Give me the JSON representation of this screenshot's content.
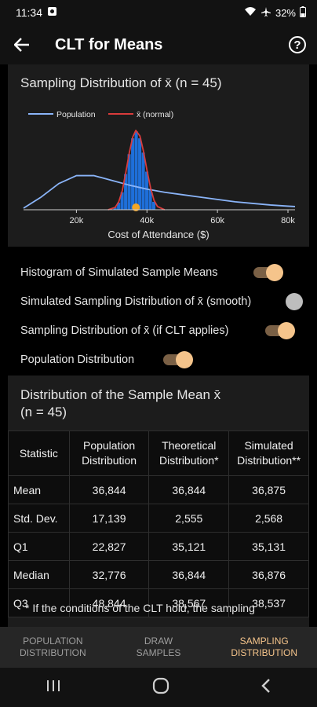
{
  "status_bar": {
    "time": "11:34",
    "battery": "32%"
  },
  "app_bar": {
    "title": "CLT for Means"
  },
  "chart_card": {
    "title": "Sampling Distribution of x̄ (n = 45)"
  },
  "chart_data": {
    "type": "area",
    "xlabel": "Cost of Attendance ($)",
    "ylabel": "",
    "x_ticks": [
      "20k",
      "40k",
      "60k",
      "80k"
    ],
    "x_tick_values": [
      20000,
      40000,
      60000,
      80000
    ],
    "xlim": [
      5000,
      82000
    ],
    "legend": "top-left",
    "series": [
      {
        "name": "Population",
        "color": "#8ab4f8",
        "x": [
          5000,
          10000,
          15000,
          20000,
          25000,
          30000,
          35000,
          40000,
          45000,
          50000,
          55000,
          60000,
          65000,
          70000,
          75000,
          80000,
          82000
        ],
        "y": [
          0.02,
          0.16,
          0.33,
          0.43,
          0.43,
          0.37,
          0.31,
          0.26,
          0.22,
          0.19,
          0.16,
          0.13,
          0.1,
          0.08,
          0.06,
          0.045,
          0.04
        ]
      },
      {
        "name": "x̄ (normal)",
        "color": "#d93b3b",
        "x": [
          29000,
          31000,
          32000,
          33000,
          34000,
          35000,
          36000,
          36844,
          38000,
          39000,
          40000,
          41000,
          42000,
          43000,
          45000
        ],
        "y": [
          0.0,
          0.03,
          0.1,
          0.24,
          0.47,
          0.72,
          0.92,
          1.0,
          0.93,
          0.74,
          0.5,
          0.28,
          0.12,
          0.04,
          0.0
        ]
      }
    ],
    "histogram": {
      "color": "#1e6fd9",
      "x": [
        31000,
        32000,
        33000,
        34000,
        35000,
        36000,
        37000,
        38000,
        39000,
        40000,
        41000,
        42000
      ],
      "y": [
        0.03,
        0.09,
        0.22,
        0.45,
        0.7,
        0.9,
        0.99,
        0.9,
        0.72,
        0.48,
        0.26,
        0.1
      ]
    },
    "mean_marker": {
      "x": 36875,
      "color": "#f5a623"
    }
  },
  "toggles": [
    {
      "label": "Histogram of Simulated Sample Means",
      "on": true
    },
    {
      "label": "Simulated Sampling Distribution of x̄ (smooth)",
      "on": false
    },
    {
      "label": "Sampling Distribution of x̄ (if CLT applies)",
      "on": true
    },
    {
      "label": "Population Distribution",
      "on": true
    }
  ],
  "table_card": {
    "title_line1": "Distribution of the Sample Mean x̄",
    "title_line2": "(n = 45)",
    "headers": {
      "h0": "Statistic",
      "h1a": "Population",
      "h1b": "Distribution",
      "h2a": "Theoretical",
      "h2b": "Distribution*",
      "h3a": "Simulated",
      "h3b": "Distribution**"
    },
    "rows": [
      {
        "label": "Mean",
        "pop": "36,844",
        "theo": "36,844",
        "sim": "36,875"
      },
      {
        "label": "Std. Dev.",
        "pop": "17,139",
        "theo": "2,555",
        "sim": "2,568"
      },
      {
        "label": "Q1",
        "pop": "22,827",
        "theo": "35,121",
        "sim": "35,131"
      },
      {
        "label": "Median",
        "pop": "32,776",
        "theo": "36,844",
        "sim": "36,876"
      },
      {
        "label": "Q3",
        "pop": "48,844",
        "theo": "38,567",
        "sim": "38,537"
      }
    ],
    "footnote": "* If the conditions of the CLT hold, the sampling"
  },
  "bottom_nav": [
    {
      "line1": "POPULATION",
      "line2": "DISTRIBUTION",
      "active": false
    },
    {
      "line1": "DRAW",
      "line2": "SAMPLES",
      "active": false
    },
    {
      "line1": "SAMPLING",
      "line2": "DISTRIBUTION",
      "active": true
    }
  ]
}
